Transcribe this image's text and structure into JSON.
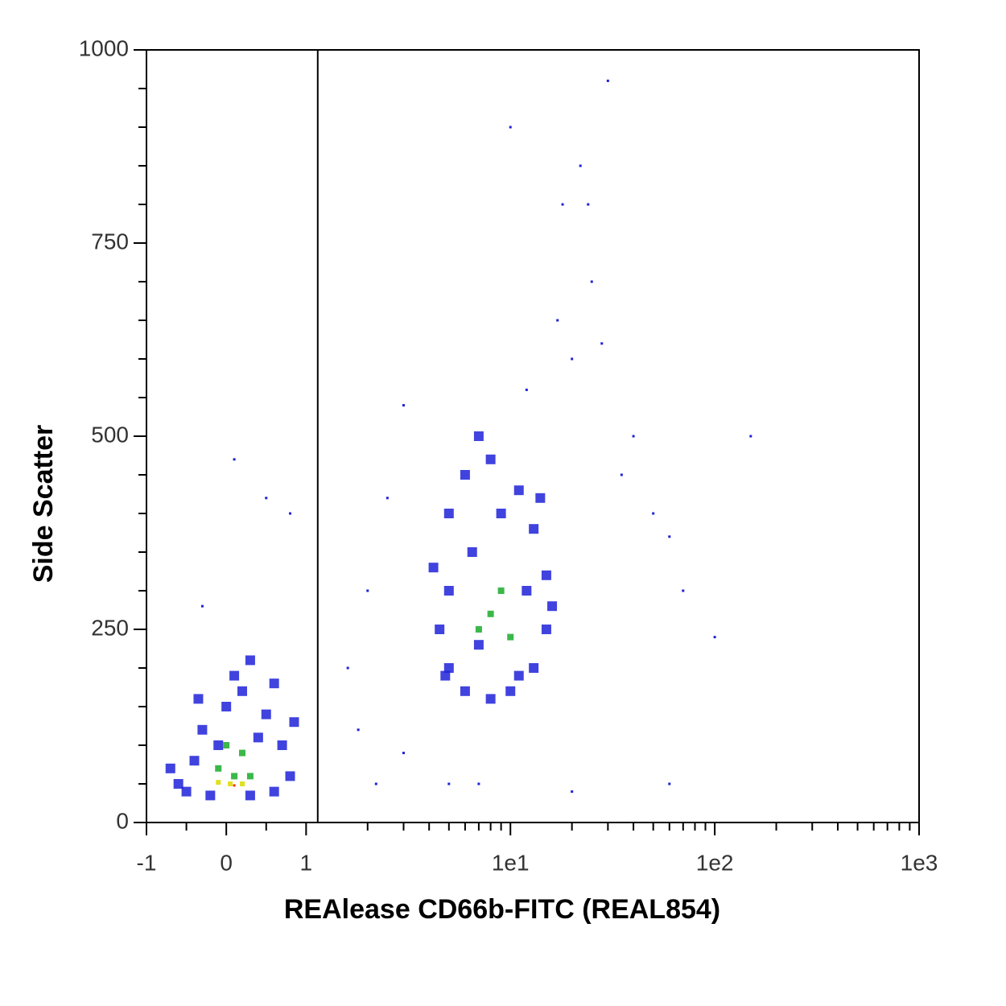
{
  "chart_data": {
    "type": "scatter",
    "x_label": "REAlease CD66b-FITC (REAL854)",
    "y_label": "Side Scatter",
    "xscale": "biexponential",
    "xlim": [
      -1,
      1000
    ],
    "ylim": [
      0,
      1000
    ],
    "xticks": [
      -1,
      0,
      1,
      {
        "value": 10,
        "label": "1e1"
      },
      {
        "value": 100,
        "label": "1e2"
      },
      {
        "value": 1000,
        "label": "1e3"
      }
    ],
    "xminorticks": [
      -0.5,
      0.5,
      2,
      3,
      4,
      5,
      6,
      7,
      8,
      9,
      20,
      30,
      40,
      50,
      60,
      70,
      80,
      90,
      200,
      300,
      400,
      500,
      600,
      700,
      800,
      900
    ],
    "yticks": [
      0,
      250,
      500,
      750,
      1000
    ],
    "yminorticks": [
      50,
      100,
      150,
      200,
      300,
      350,
      400,
      450,
      550,
      600,
      650,
      700,
      800,
      850,
      900,
      950
    ],
    "gate_x": 1.14,
    "series": [
      {
        "color": "#1e22d8",
        "size": 12,
        "x": [
          -0.6,
          -0.4,
          -0.3,
          -0.5,
          0,
          0.2,
          0.5,
          0.7,
          0.8,
          0.6,
          0.3,
          -0.2,
          0.1,
          -0.1,
          0.4,
          0.85,
          -0.7,
          0.6,
          -0.35,
          0.3,
          5,
          4.5,
          5,
          6,
          8,
          10,
          13,
          15,
          15,
          13,
          11,
          8,
          6,
          5,
          4.2,
          12,
          7,
          9,
          6.5,
          14,
          16,
          4.8,
          11,
          7
        ],
        "values": [
          50,
          80,
          120,
          40,
          150,
          170,
          140,
          100,
          60,
          40,
          35,
          35,
          190,
          100,
          110,
          130,
          70,
          180,
          160,
          210,
          300,
          250,
          200,
          170,
          160,
          170,
          200,
          250,
          320,
          380,
          430,
          470,
          450,
          400,
          330,
          300,
          230,
          400,
          350,
          420,
          280,
          190,
          190,
          500
        ]
      },
      {
        "color": "#1e22d8",
        "size": 3,
        "x": [
          20,
          25,
          18,
          22,
          30,
          17,
          28,
          35,
          40,
          50,
          60,
          70,
          100,
          150,
          12,
          3,
          2.5,
          2,
          1.6,
          1.8,
          3,
          2.2,
          0.1,
          -0.3,
          0.8,
          0.5,
          10,
          24,
          5,
          60,
          20,
          7
        ],
        "values": [
          600,
          700,
          800,
          850,
          960,
          650,
          620,
          450,
          500,
          400,
          370,
          300,
          240,
          500,
          560,
          540,
          420,
          300,
          200,
          120,
          90,
          50,
          470,
          280,
          400,
          420,
          900,
          800,
          50,
          50,
          40,
          50
        ]
      },
      {
        "color": "#3cb84a",
        "size": 8,
        "x": [
          0.1,
          -0.1,
          0.3,
          0,
          0.2,
          8,
          9,
          7,
          10
        ],
        "values": [
          60,
          70,
          60,
          100,
          90,
          270,
          300,
          250,
          240
        ]
      },
      {
        "color": "#e0e020",
        "size": 6,
        "x": [
          0.05,
          0.2,
          -0.1
        ],
        "values": [
          50,
          50,
          52
        ]
      },
      {
        "color": "#ff3000",
        "size": 3,
        "x": [
          0.1
        ],
        "values": [
          48
        ]
      }
    ]
  }
}
